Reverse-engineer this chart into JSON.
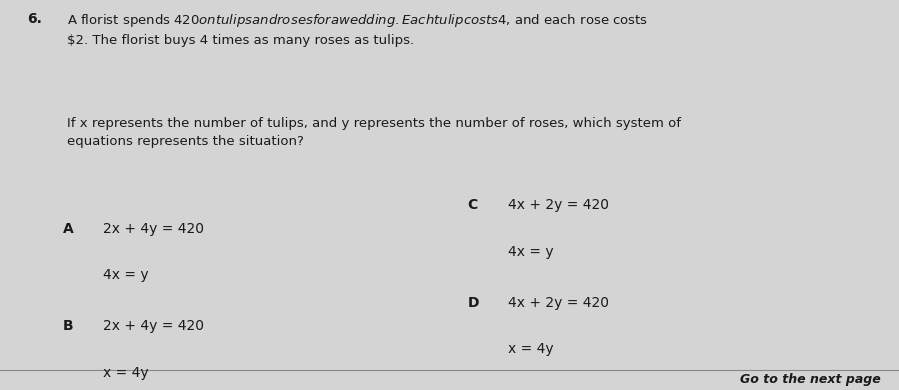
{
  "question_number": "6.",
  "paragraph1": "A florist spends $420 on tulips and roses for a wedding. Each tulip costs $4, and each rose costs\n$2. The florist buys 4 times as many roses as tulips.",
  "paragraph2": "If x represents the number of tulips, and y represents the number of roses, which system of\nequations represents the situation?",
  "option_A_label": "A",
  "option_A_line1": "2x + 4y = 420",
  "option_A_line2": "4x = y",
  "option_B_label": "B",
  "option_B_line1": "2x + 4y = 420",
  "option_B_line2": "x = 4y",
  "option_C_label": "C",
  "option_C_line1": "4x + 2y = 420",
  "option_C_line2": "4x = y",
  "option_D_label": "D",
  "option_D_line1": "4x + 2y = 420",
  "option_D_line2": "x = 4y",
  "footer": "Go to the next page",
  "bg_color": "#d4d4d4",
  "text_color": "#1a1a1a",
  "footer_color": "#1a1a1a",
  "footer_line_color": "#888888"
}
